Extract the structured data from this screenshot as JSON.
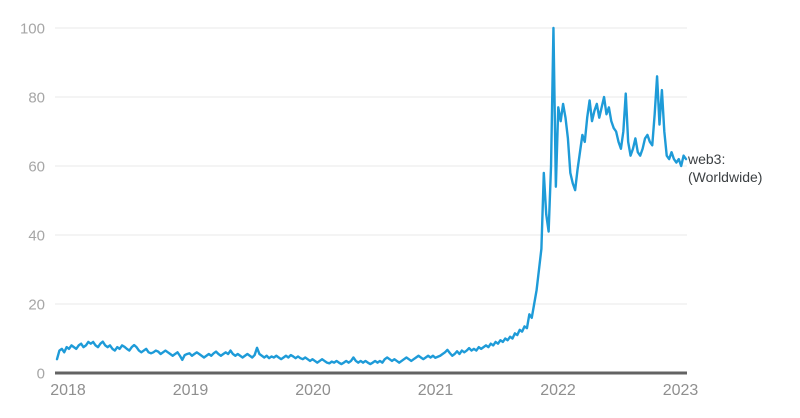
{
  "chart": {
    "series_label_line1": "web3:",
    "series_label_line2": "(Worldwide)",
    "colors": {
      "line": "#1e9bd8",
      "grid": "#e8e8e8",
      "axis": "#636363",
      "y_tick_text": "#a6a6a6",
      "x_tick_text": "#8f8f8f",
      "label_text": "#3c4043",
      "background": "#ffffff"
    }
  },
  "chart_data": {
    "type": "line",
    "title": "",
    "series_name": "web3: (Worldwide)",
    "frequency": "weekly",
    "x_range": [
      "2018-01",
      "2023-01"
    ],
    "x_tick_labels": [
      "2018",
      "2019",
      "2020",
      "2021",
      "2022",
      "2023"
    ],
    "y_tick_labels": [
      "0",
      "20",
      "40",
      "60",
      "80",
      "100"
    ],
    "y_tick_values": [
      0,
      20,
      40,
      60,
      80,
      100
    ],
    "ylim": [
      0,
      100
    ],
    "grid": "horizontal-only",
    "legend_position": "right-of-line-end",
    "values": [
      4,
      6.5,
      7,
      6,
      7.5,
      7,
      8,
      7.5,
      7,
      8,
      8.5,
      7.5,
      8,
      9,
      8.5,
      9,
      8,
      7.5,
      8.5,
      9.1,
      8,
      7.5,
      8,
      7,
      6.5,
      7.5,
      7,
      8,
      7.6,
      7,
      6.5,
      7.5,
      8.1,
      7.5,
      6.5,
      6,
      6.5,
      7,
      6,
      5.7,
      6,
      6.5,
      6.2,
      5.5,
      6,
      6.5,
      6,
      5.5,
      5,
      5.5,
      6,
      5,
      3.8,
      5.2,
      5.5,
      5.7,
      5,
      5.5,
      6,
      5.5,
      5,
      4.5,
      5,
      5.5,
      5,
      5.7,
      6.2,
      5.5,
      5,
      5.5,
      6,
      5.5,
      6.5,
      5.5,
      5,
      5.5,
      5,
      4.5,
      5,
      5.5,
      5,
      4.5,
      5.2,
      7.3,
      5.5,
      5,
      4.5,
      5,
      4.3,
      4.8,
      4.5,
      5,
      4.5,
      4,
      4.5,
      5,
      4.5,
      5.2,
      4.8,
      4.3,
      4.8,
      4.3,
      4,
      4.5,
      4,
      3.5,
      4,
      3.5,
      3,
      3.5,
      4,
      3.5,
      3,
      2.8,
      3.3,
      3,
      3.5,
      3,
      2.6,
      3,
      3.5,
      3,
      3.5,
      4.5,
      3.5,
      3,
      3.5,
      3,
      3.5,
      3,
      2.6,
      3,
      3.5,
      3,
      3.5,
      3,
      4,
      4.5,
      4,
      3.5,
      4,
      3.5,
      3,
      3.5,
      4,
      4.5,
      4,
      3.5,
      4,
      4.5,
      5,
      4.5,
      4,
      4.5,
      5,
      4.5,
      5,
      4.4,
      4.7,
      5,
      5.5,
      6,
      6.7,
      5.8,
      5,
      5.5,
      6.3,
      5.5,
      6.5,
      6,
      6.5,
      7.2,
      6.5,
      7,
      6.5,
      7.5,
      7,
      7.5,
      8,
      7.5,
      8.5,
      8,
      9,
      8.5,
      9.5,
      9,
      10,
      9.5,
      10.5,
      10,
      11.5,
      11,
      12.5,
      12,
      13.5,
      13,
      17,
      16,
      20,
      24,
      30,
      36,
      58,
      46,
      41,
      60,
      100,
      54,
      77,
      73,
      78,
      74,
      68,
      58,
      55,
      53,
      59,
      64,
      69,
      67,
      74,
      79,
      73,
      76,
      78,
      74,
      77,
      80,
      75,
      77,
      73,
      71,
      70,
      67,
      65,
      70,
      81,
      67,
      63,
      65,
      68,
      64,
      63,
      65,
      68,
      69,
      67,
      66,
      75,
      86,
      72,
      82,
      70,
      63,
      62,
      64,
      62,
      61,
      62,
      60,
      63,
      62
    ]
  }
}
